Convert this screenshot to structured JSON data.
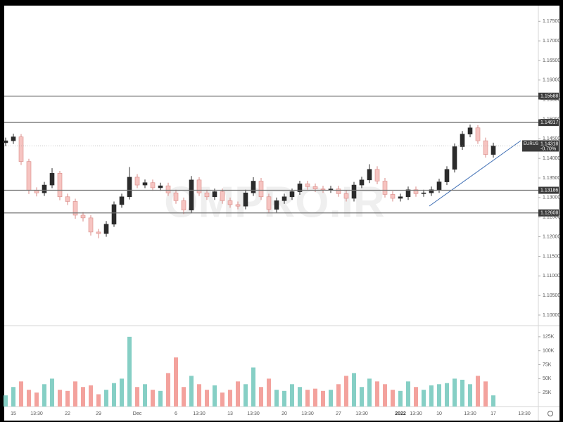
{
  "chart_data": [
    {
      "type": "candlestick",
      "symbol": "EURUSD",
      "last_price": 1.14318,
      "change": "-0.70%",
      "watermark": "OMPRO.IR",
      "up_color": "#2b2b2b",
      "down_color": "#f6c4c1",
      "ylim": [
        1.0973,
        1.179
      ],
      "yticks": [
        {
          "value": 1.175,
          "label": "1.17500"
        },
        {
          "value": 1.17,
          "label": "1.17000"
        },
        {
          "value": 1.165,
          "label": "1.16500"
        },
        {
          "value": 1.16,
          "label": "1.16000"
        },
        {
          "value": 1.155,
          "label": "1.15500"
        },
        {
          "value": 1.15,
          "label": "1.15000"
        },
        {
          "value": 1.145,
          "label": "1.14500"
        },
        {
          "value": 1.14,
          "label": "1.14000"
        },
        {
          "value": 1.135,
          "label": "1.13500"
        },
        {
          "value": 1.13,
          "label": "1.13000"
        },
        {
          "value": 1.125,
          "label": "1.12500"
        },
        {
          "value": 1.12,
          "label": "1.12000"
        },
        {
          "value": 1.115,
          "label": "1.11500"
        },
        {
          "value": 1.11,
          "label": "1.11000"
        },
        {
          "value": 1.105,
          "label": "1.10500"
        },
        {
          "value": 1.1,
          "label": "1.10000"
        }
      ],
      "hlines": [
        1.15588,
        1.14917,
        1.13186,
        1.12608
      ],
      "open": [
        1.144,
        1.1445,
        1.1455,
        1.1392,
        1.1318,
        1.1312,
        1.1332,
        1.1362,
        1.1302,
        1.129,
        1.1255,
        1.1248,
        1.1212,
        1.1208,
        1.1232,
        1.1282,
        1.1302,
        1.1352,
        1.1332,
        1.1338,
        1.1325,
        1.133,
        1.1312,
        1.1292,
        1.1268,
        1.1345,
        1.1312,
        1.1302,
        1.1315,
        1.1292,
        1.1282,
        1.1278,
        1.1312,
        1.1342,
        1.1302,
        1.127,
        1.1292,
        1.1302,
        1.1315,
        1.1335,
        1.1328,
        1.1322,
        1.132,
        1.1322,
        1.131,
        1.1298,
        1.1332,
        1.1345,
        1.1372,
        1.1342,
        1.1308,
        1.1298,
        1.1302,
        1.132,
        1.131,
        1.1312,
        1.132,
        1.134,
        1.1372,
        1.143,
        1.1462,
        1.1478,
        1.1445,
        1.141,
        null,
        null,
        null,
        null
      ],
      "high": [
        1.1453,
        1.1463,
        1.1462,
        1.1399,
        1.1326,
        1.134,
        1.1375,
        1.1368,
        1.131,
        1.1297,
        1.1263,
        1.1255,
        1.122,
        1.124,
        1.129,
        1.131,
        1.1378,
        1.136,
        1.1346,
        1.1346,
        1.1338,
        1.1338,
        1.132,
        1.13,
        1.1355,
        1.1352,
        1.132,
        1.1323,
        1.1323,
        1.13,
        1.129,
        1.132,
        1.1352,
        1.135,
        1.131,
        1.13,
        1.131,
        1.1323,
        1.1343,
        1.1343,
        1.1336,
        1.133,
        1.133,
        1.133,
        1.1318,
        1.134,
        1.1353,
        1.1385,
        1.138,
        1.135,
        1.1316,
        1.131,
        1.1328,
        1.1328,
        1.132,
        1.1328,
        1.1348,
        1.138,
        1.1438,
        1.147,
        1.1486,
        1.1485,
        1.1453,
        1.144,
        null,
        null,
        null,
        null
      ],
      "low": [
        1.1431,
        1.1437,
        1.1383,
        1.1309,
        1.1303,
        1.1304,
        1.1324,
        1.1293,
        1.1281,
        1.1246,
        1.1239,
        1.1203,
        1.1196,
        1.12,
        1.1225,
        1.1274,
        1.1295,
        1.1324,
        1.1324,
        1.1317,
        1.1317,
        1.1304,
        1.1284,
        1.1258,
        1.126,
        1.1304,
        1.1294,
        1.1294,
        1.1284,
        1.1274,
        1.127,
        1.127,
        1.1304,
        1.1294,
        1.1262,
        1.1262,
        1.1284,
        1.1294,
        1.1307,
        1.132,
        1.1314,
        1.1312,
        1.1312,
        1.1302,
        1.129,
        1.129,
        1.1324,
        1.1337,
        1.1334,
        1.13,
        1.129,
        1.129,
        1.1294,
        1.1302,
        1.1302,
        1.1304,
        1.1312,
        1.1332,
        1.1364,
        1.1422,
        1.1454,
        1.1437,
        1.1402,
        1.1402,
        null,
        null,
        null,
        null
      ],
      "close": [
        1.1445,
        1.1455,
        1.1392,
        1.1318,
        1.1312,
        1.1332,
        1.1362,
        1.1302,
        1.129,
        1.1255,
        1.1248,
        1.1212,
        1.1208,
        1.1232,
        1.1282,
        1.1302,
        1.1352,
        1.1332,
        1.1338,
        1.1325,
        1.133,
        1.1312,
        1.1292,
        1.1268,
        1.1345,
        1.1312,
        1.1302,
        1.1315,
        1.1292,
        1.1282,
        1.1278,
        1.1312,
        1.1342,
        1.1302,
        1.127,
        1.1292,
        1.1302,
        1.1315,
        1.1335,
        1.1328,
        1.1322,
        1.132,
        1.1322,
        1.131,
        1.1298,
        1.1332,
        1.1345,
        1.1372,
        1.1342,
        1.1308,
        1.1298,
        1.1302,
        1.132,
        1.131,
        1.1312,
        1.132,
        1.134,
        1.1372,
        1.143,
        1.1462,
        1.1478,
        1.1445,
        1.141,
        1.14318,
        null,
        null,
        null,
        null
      ]
    },
    {
      "type": "bar",
      "categories": [
        null,
        "15",
        null,
        null,
        "13:30",
        null,
        null,
        null,
        "22",
        null,
        null,
        null,
        "29",
        null,
        null,
        null,
        null,
        "Dec",
        null,
        null,
        null,
        null,
        "6",
        null,
        null,
        "13:30",
        null,
        null,
        null,
        "13",
        null,
        null,
        "13:30",
        null,
        null,
        null,
        "20",
        null,
        null,
        "13:30",
        null,
        null,
        null,
        "27",
        null,
        null,
        "13:30",
        null,
        null,
        null,
        null,
        "2022",
        null,
        "13:30",
        null,
        null,
        "10",
        null,
        null,
        null,
        "13:30",
        null,
        null,
        "17",
        null,
        null,
        null,
        "13:30"
      ],
      "values": [
        20000,
        35000,
        45000,
        30000,
        25000,
        40000,
        50000,
        30000,
        28000,
        45000,
        35000,
        38000,
        22000,
        30000,
        42000,
        50000,
        125000,
        35000,
        40000,
        30000,
        28000,
        60000,
        88000,
        35000,
        55000,
        40000,
        30000,
        38000,
        25000,
        30000,
        45000,
        40000,
        70000,
        35000,
        50000,
        30000,
        28000,
        40000,
        35000,
        30000,
        32000,
        28000,
        30000,
        40000,
        55000,
        60000,
        35000,
        50000,
        45000,
        40000,
        30000,
        28000,
        45000,
        35000,
        30000,
        38000,
        40000,
        42000,
        50000,
        48000,
        40000,
        55000,
        45000,
        20000,
        null,
        null,
        null,
        null
      ],
      "up_color": "#86cfc5",
      "down_color": "#f3a29d",
      "ylim": [
        0,
        145000
      ],
      "yticks": [
        {
          "value": 25000,
          "label": "25K"
        },
        {
          "value": 50000,
          "label": "50K"
        },
        {
          "value": 75000,
          "label": "75K"
        },
        {
          "value": 100000,
          "label": "100K"
        },
        {
          "value": 125000,
          "label": "125K"
        }
      ]
    }
  ]
}
